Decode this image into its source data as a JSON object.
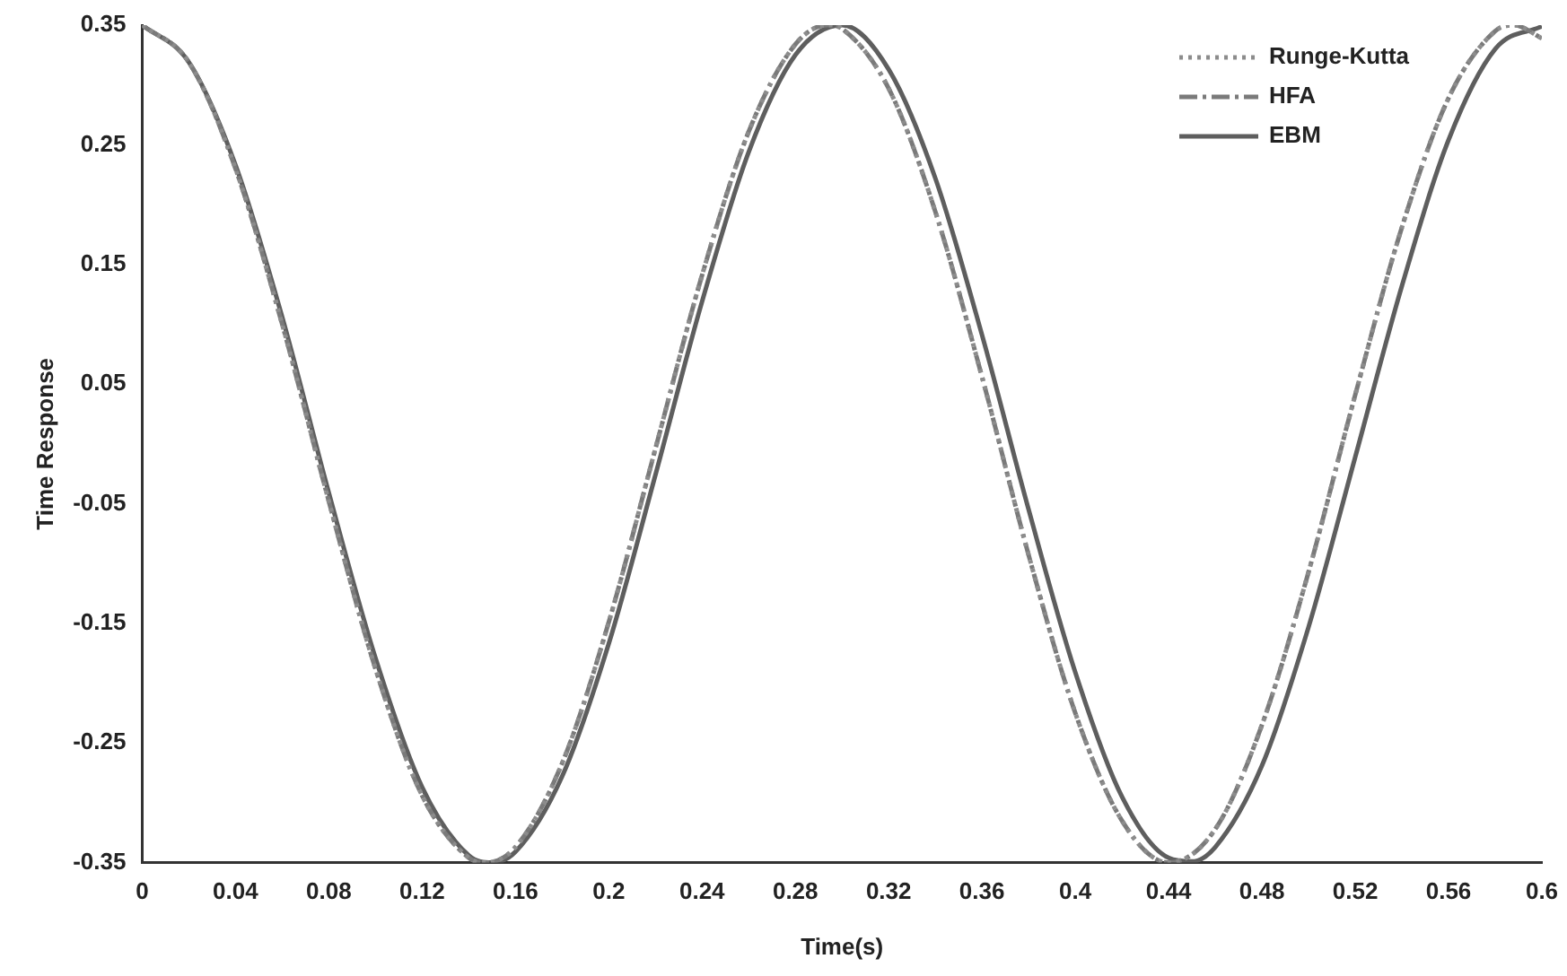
{
  "chart_data": {
    "type": "line",
    "xlabel": "Time(s)",
    "ylabel": "Time Response",
    "xlim": [
      0,
      0.6
    ],
    "xticks": [
      0,
      0.04,
      0.08,
      0.12,
      0.16,
      0.2,
      0.24,
      0.28,
      0.32,
      0.36,
      0.4,
      0.44,
      0.48,
      0.52,
      0.56,
      0.6
    ],
    "ylim": [
      -0.35,
      0.35
    ],
    "yticks": [
      -0.35,
      -0.25,
      -0.15,
      -0.05,
      0.05,
      0.15,
      0.25,
      0.35
    ],
    "grid": false,
    "legend": "top right",
    "series": [
      {
        "name": "Runge-Kutta",
        "color": "#8c8c8c",
        "line_style": "dotted",
        "x": [
          0,
          0.02,
          0.04,
          0.06,
          0.08,
          0.1,
          0.12,
          0.14,
          0.147,
          0.16,
          0.18,
          0.2,
          0.22,
          0.24,
          0.26,
          0.28,
          0.294,
          0.3,
          0.32,
          0.34,
          0.36,
          0.38,
          0.4,
          0.42,
          0.44,
          0.46,
          0.48,
          0.5,
          0.52,
          0.54,
          0.56,
          0.58,
          0.588,
          0.6
        ],
        "values": [
          0.35,
          0.319,
          0.23,
          0.1,
          -0.048,
          -0.188,
          -0.294,
          -0.346,
          -0.35,
          -0.337,
          -0.267,
          -0.149,
          -0.004,
          0.141,
          0.261,
          0.334,
          0.35,
          0.347,
          0.297,
          0.194,
          0.056,
          -0.093,
          -0.225,
          -0.315,
          -0.35,
          -0.322,
          -0.235,
          -0.107,
          0.041,
          0.181,
          0.289,
          0.345,
          0.35,
          0.339
        ]
      },
      {
        "name": "HFA",
        "color": "#7a7a7a",
        "line_style": "dashdot",
        "x": [
          0,
          0.02,
          0.04,
          0.06,
          0.08,
          0.1,
          0.12,
          0.14,
          0.147,
          0.16,
          0.18,
          0.2,
          0.22,
          0.24,
          0.26,
          0.28,
          0.294,
          0.3,
          0.32,
          0.34,
          0.36,
          0.38,
          0.4,
          0.42,
          0.44,
          0.46,
          0.48,
          0.5,
          0.52,
          0.54,
          0.56,
          0.58,
          0.588,
          0.6
        ],
        "values": [
          0.35,
          0.319,
          0.23,
          0.1,
          -0.048,
          -0.188,
          -0.294,
          -0.346,
          -0.35,
          -0.337,
          -0.267,
          -0.149,
          -0.004,
          0.141,
          0.261,
          0.334,
          0.35,
          0.347,
          0.297,
          0.194,
          0.056,
          -0.093,
          -0.225,
          -0.315,
          -0.35,
          -0.322,
          -0.235,
          -0.107,
          0.041,
          0.181,
          0.289,
          0.345,
          0.35,
          0.339
        ]
      },
      {
        "name": "EBM",
        "color": "#5e5e5e",
        "line_style": "solid",
        "x": [
          0,
          0.02,
          0.04,
          0.06,
          0.08,
          0.1,
          0.12,
          0.14,
          0.15,
          0.16,
          0.18,
          0.2,
          0.22,
          0.24,
          0.26,
          0.28,
          0.3,
          0.32,
          0.34,
          0.36,
          0.38,
          0.4,
          0.42,
          0.44,
          0.45,
          0.46,
          0.48,
          0.5,
          0.52,
          0.54,
          0.56,
          0.58,
          0.6
        ],
        "values": [
          0.35,
          0.319,
          0.233,
          0.106,
          -0.041,
          -0.179,
          -0.287,
          -0.344,
          -0.35,
          -0.341,
          -0.278,
          -0.167,
          -0.026,
          0.119,
          0.244,
          0.325,
          0.35,
          0.313,
          0.222,
          0.091,
          -0.055,
          -0.191,
          -0.295,
          -0.346,
          -0.349,
          -0.337,
          -0.269,
          -0.153,
          -0.011,
          0.132,
          0.254,
          0.33,
          0.349
        ]
      }
    ]
  }
}
